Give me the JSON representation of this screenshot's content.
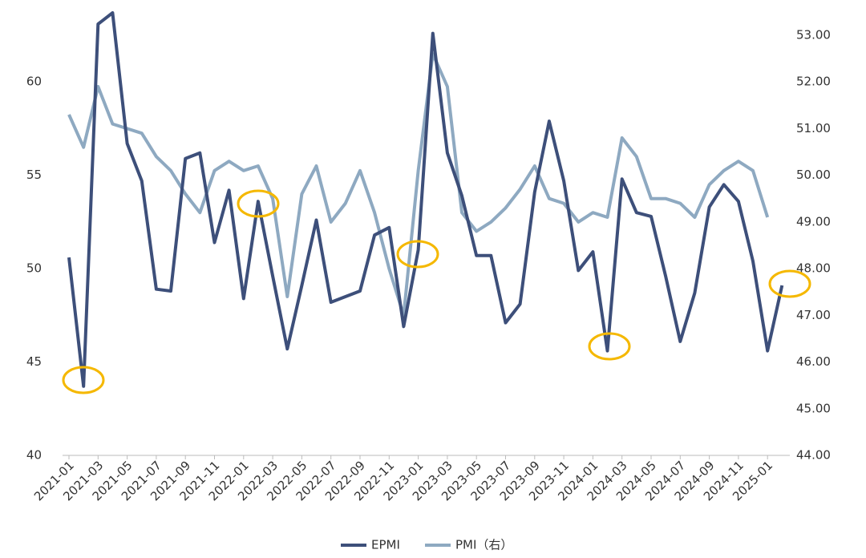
{
  "chart_data": {
    "type": "line",
    "categories": [
      "2021-01",
      null,
      "2021-03",
      null,
      "2021-05",
      null,
      "2021-07",
      null,
      "2021-09",
      null,
      "2021-11",
      null,
      "2022-01",
      null,
      "2022-03",
      null,
      "2022-05",
      null,
      "2022-07",
      null,
      "2022-09",
      null,
      "2022-11",
      null,
      "2023-01",
      null,
      "2023-03",
      null,
      "2023-05",
      null,
      "2023-07",
      null,
      "2023-09",
      null,
      "2023-11",
      null,
      "2024-01",
      null,
      "2024-03",
      null,
      "2024-05",
      null,
      "2024-07",
      null,
      "2024-09",
      null,
      "2024-11",
      null,
      "2025-01",
      null
    ],
    "series": [
      {
        "name": "EPMI",
        "color": "#3d4f7a",
        "values": [
          50.6,
          43.7,
          63.1,
          63.7,
          56.7,
          54.7,
          48.9,
          48.8,
          55.9,
          56.2,
          51.4,
          54.2,
          48.4,
          53.6,
          49.6,
          45.7,
          49.1,
          52.6,
          48.2,
          48.5,
          48.8,
          51.8,
          52.2,
          46.9,
          51.0,
          62.6,
          56.2,
          53.9,
          50.7,
          50.7,
          47.1,
          48.1,
          54.1,
          57.9,
          54.7,
          49.9,
          50.9,
          45.6,
          54.8,
          53.0,
          52.8,
          49.6,
          46.1,
          48.7,
          53.3,
          54.5,
          53.6,
          50.4,
          45.6,
          49.1
        ]
      },
      {
        "name": "PMI（右）",
        "color": "#8ea9c1",
        "axis": "y2",
        "values": [
          51.3,
          50.6,
          51.9,
          51.1,
          51.0,
          50.9,
          50.4,
          50.1,
          49.6,
          49.2,
          50.1,
          50.3,
          50.1,
          50.2,
          49.5,
          47.4,
          49.6,
          50.2,
          49.0,
          49.4,
          50.1,
          49.2,
          48.0,
          47.0,
          50.1,
          52.6,
          51.9,
          49.2,
          48.8,
          49.0,
          49.3,
          49.7,
          50.2,
          49.5,
          49.4,
          49.0,
          49.2,
          49.1,
          50.8,
          50.4,
          49.5,
          49.5,
          49.4,
          49.1,
          49.8,
          50.1,
          50.3,
          50.1,
          49.1,
          null
        ]
      }
    ],
    "ylim": [
      40,
      64
    ],
    "yticks": [
      40,
      45,
      50,
      55,
      60
    ],
    "y2lim": [
      44,
      53.6
    ],
    "y2ticks": [
      {
        "value": 44,
        "label": "44.00"
      },
      {
        "value": 45,
        "label": "45.00"
      },
      {
        "value": 46,
        "label": "46.00"
      },
      {
        "value": 47,
        "label": "47.00"
      },
      {
        "value": 48,
        "label": "48.00"
      },
      {
        "value": 49,
        "label": "49.00"
      },
      {
        "value": 50,
        "label": "50.00"
      },
      {
        "value": 51,
        "label": "51.00"
      },
      {
        "value": 52,
        "label": "52.00"
      },
      {
        "value": 53,
        "label": "53.00"
      }
    ],
    "grid": false,
    "legend": "bottom"
  }
}
